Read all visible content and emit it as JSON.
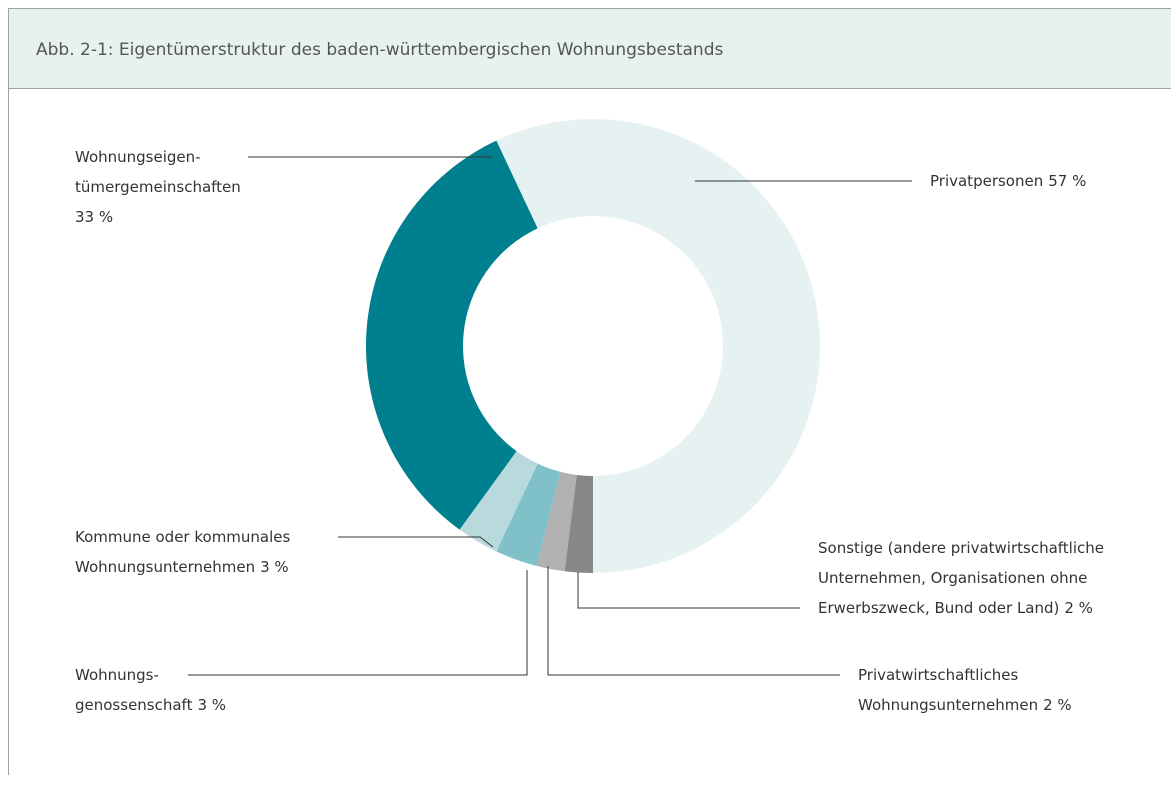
{
  "chart_data": {
    "type": "donut",
    "title": "Abb. 2-1: Eigentümerstruktur des baden-württembergischen Wohnungsbestands",
    "categories": [
      [
        "Privatpersonen"
      ],
      [
        "Sonstige (andere privatwirtschaftliche",
        "Unternehmen, Organisationen ohne",
        "Erwerbszweck, Bund oder Land)"
      ],
      [
        "Privatwirtschaftliches",
        "Wohnungsunternehmen"
      ],
      [
        "Wohnungs-",
        "genossenschaft"
      ],
      [
        "Kommune oder kommunales",
        "Wohnungsunternehmen"
      ],
      [
        "Wohnungseigen-",
        "tümergemeinschaften"
      ]
    ],
    "values": [
      57,
      2,
      2,
      3,
      3,
      33
    ],
    "value_labels": [
      "57 %",
      "2 %",
      "2 %",
      "3 %",
      "3 %",
      "33 %"
    ],
    "colors": [
      "#e6f2f2",
      "#878787",
      "#b1b1b1",
      "#7fc0c9",
      "#b8dadd",
      "#00808f"
    ]
  }
}
